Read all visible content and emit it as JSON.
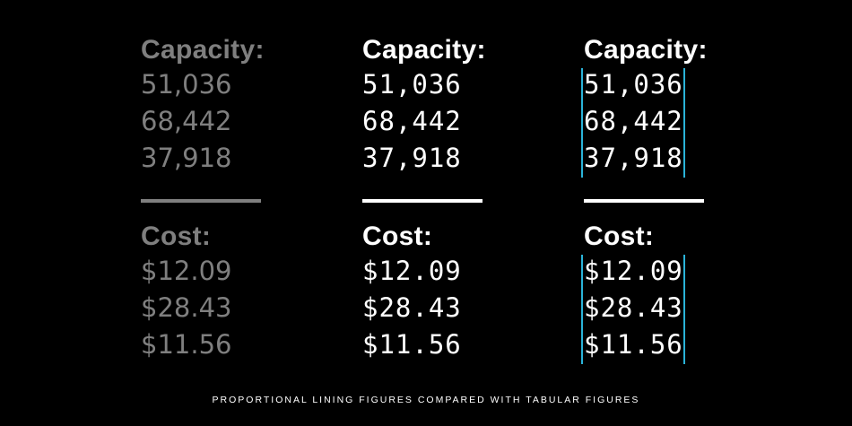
{
  "columns": [
    {
      "capacity_heading": "Capacity:",
      "capacity_values": [
        "51,036",
        "68,442",
        "37,918"
      ],
      "cost_heading": "Cost:",
      "cost_values": [
        "$12.09",
        "$28.43",
        "$11.56"
      ]
    },
    {
      "capacity_heading": "Capacity:",
      "capacity_values": [
        "51,036",
        "68,442",
        "37,918"
      ],
      "cost_heading": "Cost:",
      "cost_values": [
        "$12.09",
        "$28.43",
        "$11.56"
      ]
    },
    {
      "capacity_heading": "Capacity:",
      "capacity_values": [
        "51,036",
        "68,442",
        "37,918"
      ],
      "cost_heading": "Cost:",
      "cost_values": [
        "$12.09",
        "$28.43",
        "$11.56"
      ]
    }
  ],
  "caption": "PROPORTIONAL LINING FIGURES COMPARED WITH TABULAR FIGURES",
  "colors": {
    "background": "#000000",
    "dim_text": "#7f7f7f",
    "text": "#ffffff",
    "guide_line": "#2ab3d8"
  }
}
